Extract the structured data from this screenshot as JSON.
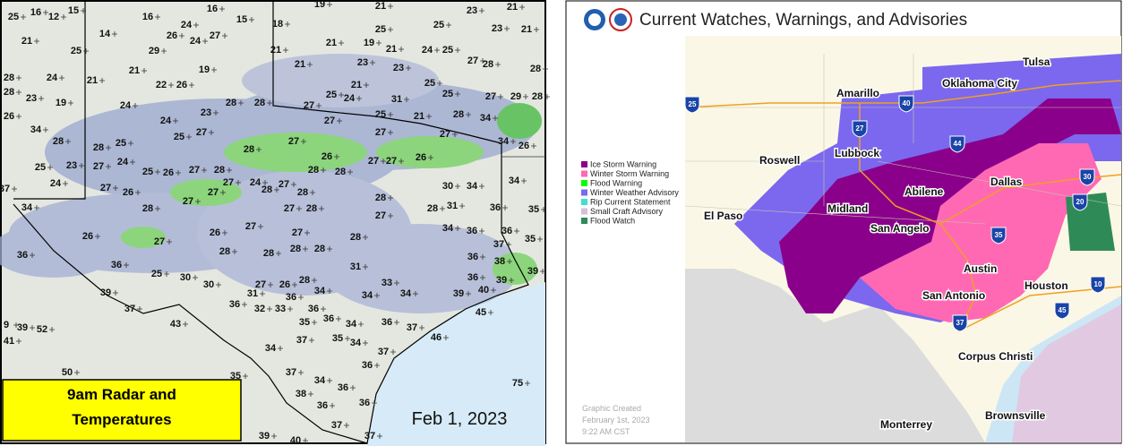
{
  "left_panel": {
    "caption": [
      "9am Radar and",
      "Temperatures"
    ],
    "date": "Feb 1, 2023",
    "temperatures": [
      25,
      16,
      12,
      15,
      16,
      16,
      15,
      18,
      19,
      21,
      23,
      21,
      21,
      14,
      24,
      26,
      24,
      27,
      21,
      21,
      19,
      21,
      25,
      25,
      23,
      21,
      25,
      29,
      21,
      23,
      24,
      25,
      27,
      28,
      21,
      19,
      23,
      28,
      24,
      21,
      22,
      26,
      21,
      25,
      28,
      28,
      23,
      19,
      25,
      24,
      31,
      25,
      27,
      29,
      28,
      24,
      23,
      28,
      28,
      27,
      25,
      21,
      28,
      34,
      26,
      24,
      27,
      27,
      27,
      34,
      26,
      34,
      28,
      25,
      27,
      28,
      27,
      26,
      28,
      27,
      27,
      26,
      28,
      25,
      23,
      27,
      24,
      25,
      26,
      27,
      28,
      27,
      24,
      27,
      28,
      25,
      24,
      27,
      26,
      30,
      34,
      34,
      27,
      28,
      28,
      27,
      28,
      28,
      28,
      31,
      36,
      35,
      37,
      34,
      28,
      27,
      27,
      26,
      27,
      27,
      34,
      36,
      36,
      28,
      26,
      27,
      28,
      28,
      28,
      28,
      37,
      35,
      36,
      36,
      25,
      31,
      36,
      38,
      39,
      30,
      30,
      27,
      26,
      28,
      36,
      33,
      36,
      39,
      39,
      31,
      34,
      34,
      34,
      39,
      40,
      37,
      36,
      32,
      33,
      36,
      45,
      9,
      39,
      52,
      43,
      35,
      36,
      34,
      36,
      37,
      41,
      37,
      35,
      34,
      46,
      34,
      50,
      36,
      35,
      37,
      34,
      36,
      37,
      75,
      38,
      36,
      36,
      37,
      37,
      39,
      40
    ]
  },
  "right_panel": {
    "title": "Current Watches, Warnings, and Advisories",
    "legend": [
      {
        "name": "Ice Storm Warning",
        "color": "#8b008b"
      },
      {
        "name": "Winter Storm Warning",
        "color": "#ff69b4"
      },
      {
        "name": "Flood Warning",
        "color": "#00ff00"
      },
      {
        "name": "Winter Weather Advisory",
        "color": "#7b68ee"
      },
      {
        "name": "Rip Current Statement",
        "color": "#40e0d0"
      },
      {
        "name": "Small Craft Advisory",
        "color": "#d8bfd8"
      },
      {
        "name": "Flood Watch",
        "color": "#2e8b57"
      }
    ],
    "cities": [
      "Tulsa",
      "Oklahoma City",
      "Amarillo",
      "Lubbock",
      "Roswell",
      "Abilene",
      "Dallas",
      "Midland",
      "El Paso",
      "San Angelo",
      "Austin",
      "San Antonio",
      "Houston",
      "Corpus Christi",
      "Brownsville",
      "Monterrey"
    ],
    "interstates": [
      25,
      40,
      27,
      44,
      30,
      20,
      35,
      37,
      45,
      10
    ],
    "footer": [
      "Graphic Created",
      "February 1st, 2023",
      "9:22 AM CST"
    ]
  }
}
